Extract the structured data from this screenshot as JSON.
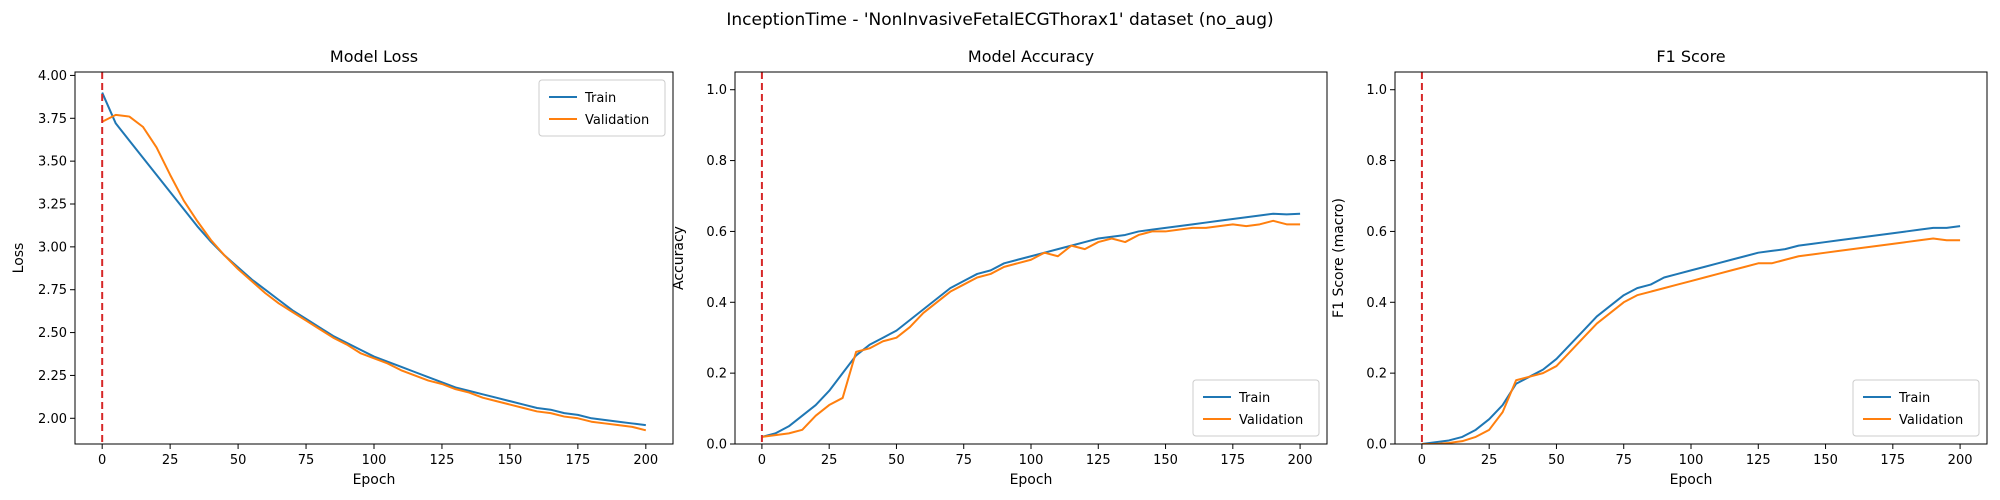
{
  "figure": {
    "suptitle": "InceptionTime - 'NonInvasiveFetalECGThorax1' dataset (no_aug)"
  },
  "colors": {
    "train": "#1f77b4",
    "validation": "#ff7f0e",
    "marker": "#d62728"
  },
  "chart_data": [
    {
      "type": "line",
      "title": "Model Loss",
      "xlabel": "Epoch",
      "ylabel": "Loss",
      "xlim": [
        -10,
        210
      ],
      "ylim": [
        1.85,
        4.02
      ],
      "xticks": [
        0,
        25,
        50,
        75,
        100,
        125,
        150,
        175,
        200
      ],
      "yticks": [
        2.0,
        2.25,
        2.5,
        2.75,
        3.0,
        3.25,
        3.5,
        3.75,
        4.0
      ],
      "ytick_decimals": 2,
      "legend": "top-right",
      "vline_x": 0,
      "grid": false,
      "series": [
        {
          "name": "Train",
          "x": [
            0,
            5,
            10,
            15,
            20,
            25,
            30,
            35,
            40,
            45,
            50,
            55,
            60,
            65,
            70,
            75,
            80,
            85,
            90,
            95,
            100,
            105,
            110,
            115,
            120,
            125,
            130,
            135,
            140,
            145,
            150,
            155,
            160,
            165,
            170,
            175,
            180,
            185,
            190,
            195,
            200
          ],
          "y": [
            3.9,
            3.72,
            3.62,
            3.52,
            3.42,
            3.32,
            3.22,
            3.12,
            3.03,
            2.95,
            2.88,
            2.81,
            2.75,
            2.69,
            2.63,
            2.58,
            2.53,
            2.48,
            2.44,
            2.4,
            2.36,
            2.33,
            2.3,
            2.27,
            2.24,
            2.21,
            2.18,
            2.16,
            2.14,
            2.12,
            2.1,
            2.08,
            2.06,
            2.05,
            2.03,
            2.02,
            2.0,
            1.99,
            1.98,
            1.97,
            1.96
          ]
        },
        {
          "name": "Validation",
          "x": [
            0,
            5,
            10,
            15,
            20,
            25,
            30,
            35,
            40,
            45,
            50,
            55,
            60,
            65,
            70,
            75,
            80,
            85,
            90,
            95,
            100,
            105,
            110,
            115,
            120,
            125,
            130,
            135,
            140,
            145,
            150,
            155,
            160,
            165,
            170,
            175,
            180,
            185,
            190,
            195,
            200
          ],
          "y": [
            3.73,
            3.77,
            3.76,
            3.7,
            3.58,
            3.42,
            3.27,
            3.15,
            3.04,
            2.95,
            2.87,
            2.8,
            2.73,
            2.67,
            2.62,
            2.57,
            2.52,
            2.47,
            2.43,
            2.38,
            2.35,
            2.32,
            2.28,
            2.25,
            2.22,
            2.2,
            2.17,
            2.15,
            2.12,
            2.1,
            2.08,
            2.06,
            2.04,
            2.03,
            2.01,
            2.0,
            1.98,
            1.97,
            1.96,
            1.95,
            1.93
          ]
        }
      ]
    },
    {
      "type": "line",
      "title": "Model Accuracy",
      "xlabel": "Epoch",
      "ylabel": "Accuracy",
      "xlim": [
        -10,
        210
      ],
      "ylim": [
        0,
        1.05
      ],
      "xticks": [
        0,
        25,
        50,
        75,
        100,
        125,
        150,
        175,
        200
      ],
      "yticks": [
        0.0,
        0.2,
        0.4,
        0.6,
        0.8,
        1.0
      ],
      "ytick_decimals": 1,
      "legend": "bottom-right",
      "vline_x": 0,
      "grid": false,
      "series": [
        {
          "name": "Train",
          "x": [
            0,
            5,
            10,
            15,
            20,
            25,
            30,
            35,
            40,
            45,
            50,
            55,
            60,
            65,
            70,
            75,
            80,
            85,
            90,
            95,
            100,
            105,
            110,
            115,
            120,
            125,
            130,
            135,
            140,
            145,
            150,
            155,
            160,
            165,
            170,
            175,
            180,
            185,
            190,
            195,
            200
          ],
          "y": [
            0.02,
            0.03,
            0.05,
            0.08,
            0.11,
            0.15,
            0.2,
            0.25,
            0.28,
            0.3,
            0.32,
            0.35,
            0.38,
            0.41,
            0.44,
            0.46,
            0.48,
            0.49,
            0.51,
            0.52,
            0.53,
            0.54,
            0.55,
            0.56,
            0.57,
            0.58,
            0.585,
            0.59,
            0.6,
            0.605,
            0.61,
            0.615,
            0.62,
            0.625,
            0.63,
            0.635,
            0.64,
            0.645,
            0.65,
            0.648,
            0.65
          ]
        },
        {
          "name": "Validation",
          "x": [
            0,
            5,
            10,
            15,
            20,
            25,
            30,
            35,
            40,
            45,
            50,
            55,
            60,
            65,
            70,
            75,
            80,
            85,
            90,
            95,
            100,
            105,
            110,
            115,
            120,
            125,
            130,
            135,
            140,
            145,
            150,
            155,
            160,
            165,
            170,
            175,
            180,
            185,
            190,
            195,
            200
          ],
          "y": [
            0.02,
            0.025,
            0.03,
            0.04,
            0.08,
            0.11,
            0.13,
            0.26,
            0.27,
            0.29,
            0.3,
            0.33,
            0.37,
            0.4,
            0.43,
            0.45,
            0.47,
            0.48,
            0.5,
            0.51,
            0.52,
            0.54,
            0.53,
            0.56,
            0.55,
            0.57,
            0.58,
            0.57,
            0.59,
            0.6,
            0.6,
            0.605,
            0.61,
            0.61,
            0.615,
            0.62,
            0.615,
            0.62,
            0.63,
            0.62,
            0.62
          ]
        }
      ]
    },
    {
      "type": "line",
      "title": "F1 Score",
      "xlabel": "Epoch",
      "ylabel": "F1 Score (macro)",
      "xlim": [
        -10,
        210
      ],
      "ylim": [
        0,
        1.05
      ],
      "xticks": [
        0,
        25,
        50,
        75,
        100,
        125,
        150,
        175,
        200
      ],
      "yticks": [
        0.0,
        0.2,
        0.4,
        0.6,
        0.8,
        1.0
      ],
      "ytick_decimals": 1,
      "legend": "bottom-right",
      "vline_x": 0,
      "grid": false,
      "series": [
        {
          "name": "Train",
          "x": [
            0,
            5,
            10,
            15,
            20,
            25,
            30,
            35,
            40,
            45,
            50,
            55,
            60,
            65,
            70,
            75,
            80,
            85,
            90,
            95,
            100,
            105,
            110,
            115,
            120,
            125,
            130,
            135,
            140,
            145,
            150,
            155,
            160,
            165,
            170,
            175,
            180,
            185,
            190,
            195,
            200
          ],
          "y": [
            0.0,
            0.005,
            0.01,
            0.02,
            0.04,
            0.07,
            0.11,
            0.17,
            0.19,
            0.21,
            0.24,
            0.28,
            0.32,
            0.36,
            0.39,
            0.42,
            0.44,
            0.45,
            0.47,
            0.48,
            0.49,
            0.5,
            0.51,
            0.52,
            0.53,
            0.54,
            0.545,
            0.55,
            0.56,
            0.565,
            0.57,
            0.575,
            0.58,
            0.585,
            0.59,
            0.595,
            0.6,
            0.605,
            0.61,
            0.61,
            0.615
          ]
        },
        {
          "name": "Validation",
          "x": [
            0,
            5,
            10,
            15,
            20,
            25,
            30,
            35,
            40,
            45,
            50,
            55,
            60,
            65,
            70,
            75,
            80,
            85,
            90,
            95,
            100,
            105,
            110,
            115,
            120,
            125,
            130,
            135,
            140,
            145,
            150,
            155,
            160,
            165,
            170,
            175,
            180,
            185,
            190,
            195,
            200
          ],
          "y": [
            0.0,
            0.0,
            0.003,
            0.008,
            0.02,
            0.04,
            0.09,
            0.18,
            0.19,
            0.2,
            0.22,
            0.26,
            0.3,
            0.34,
            0.37,
            0.4,
            0.42,
            0.43,
            0.44,
            0.45,
            0.46,
            0.47,
            0.48,
            0.49,
            0.5,
            0.51,
            0.51,
            0.52,
            0.53,
            0.535,
            0.54,
            0.545,
            0.55,
            0.555,
            0.56,
            0.565,
            0.57,
            0.575,
            0.58,
            0.575,
            0.575
          ]
        }
      ]
    }
  ]
}
